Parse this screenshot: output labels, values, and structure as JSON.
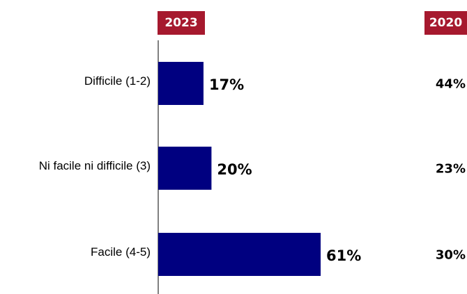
{
  "chart_data": {
    "type": "bar",
    "orientation": "horizontal",
    "categories": [
      "Difficile (1-2)",
      "Ni facile ni difficile (3)",
      "Facile (4-5)"
    ],
    "series": [
      {
        "name": "2023",
        "values": [
          17,
          20,
          61
        ],
        "labels": [
          "17%",
          "20%",
          "61%"
        ]
      },
      {
        "name": "2020",
        "values": [
          44,
          23,
          30
        ],
        "labels": [
          "44%",
          "23%",
          "30%"
        ]
      }
    ],
    "unit": "%",
    "xlim": [
      0,
      100
    ],
    "grid": false,
    "bar_color": "#000080",
    "badge_color": "#a6192e"
  }
}
